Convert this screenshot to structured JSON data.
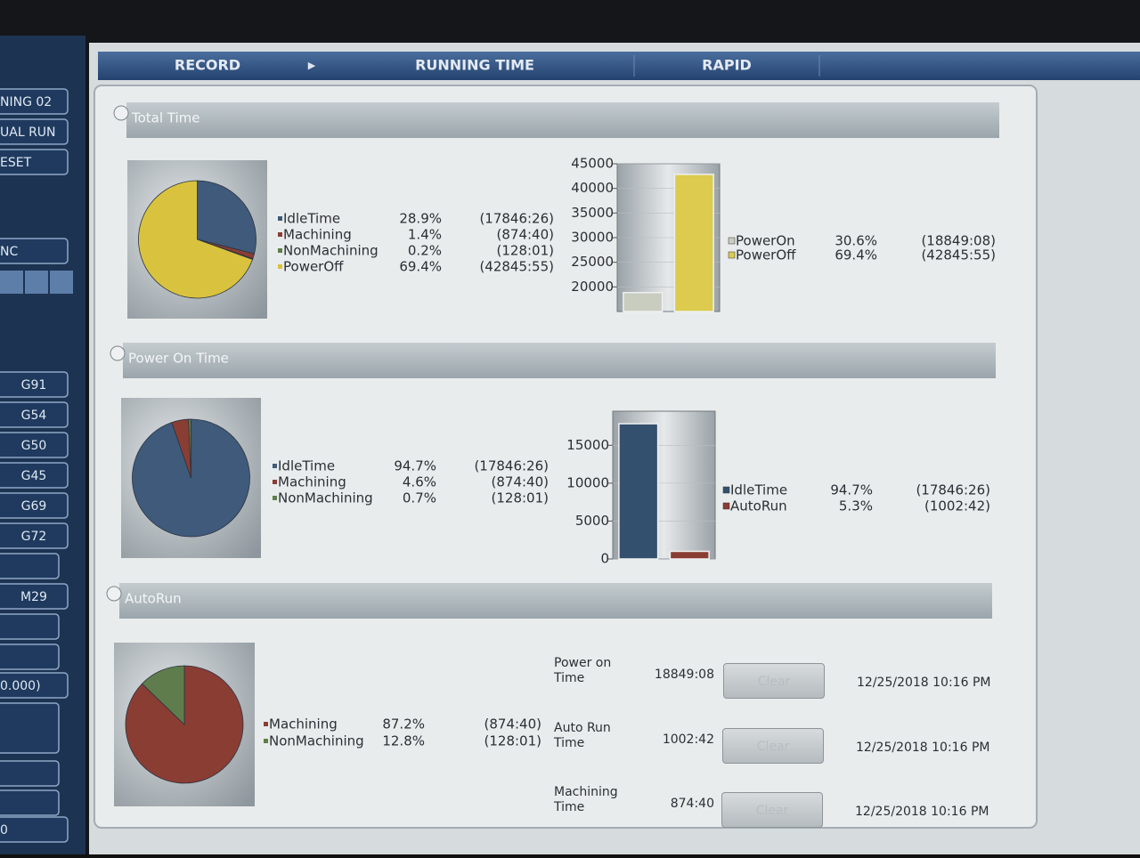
{
  "sidebar": [
    "NING 02",
    "UAL RUN",
    "ESET",
    "NC",
    "G91",
    "G54",
    "G50",
    "G45",
    "G69",
    "G72",
    "M29",
    "0.000)",
    "0"
  ],
  "tabs": [
    "RECORD",
    "RUNNING TIME",
    "RAPID"
  ],
  "sections": [
    {
      "title": "Total Time",
      "pie": {
        "type": "pie",
        "categories": [
          "IdleTime",
          "Machining",
          "NonMachining",
          "PowerOff"
        ],
        "values": [
          28.9,
          1.4,
          0.2,
          69.4
        ],
        "value_labels": [
          "28.9%",
          "1.4%",
          "0.2%",
          "69.4%"
        ],
        "durations": [
          "(17846:26)",
          "(874:40)",
          "(128:01)",
          "(42845:55)"
        ],
        "colors": [
          "#3f5a7a",
          "#8a3d33",
          "#5f7d4c",
          "#d9c23e"
        ]
      },
      "bar": {
        "type": "bar",
        "categories": [
          "PowerOn",
          "PowerOff"
        ],
        "values": [
          18849,
          42846
        ],
        "shares": [
          "30.6%",
          "69.4%"
        ],
        "durations": [
          "(18849:08)",
          "(42845:55)"
        ],
        "colors": [
          "#c9cdbf",
          "#dccb4e"
        ],
        "ylim": [
          15000,
          45000
        ],
        "yticks": [
          20000,
          25000,
          30000,
          35000,
          40000,
          45000
        ]
      }
    },
    {
      "title": "Power On Time",
      "pie": {
        "type": "pie",
        "categories": [
          "IdleTime",
          "Machining",
          "NonMachining"
        ],
        "values": [
          94.7,
          4.6,
          0.7
        ],
        "value_labels": [
          "94.7%",
          "4.6%",
          "0.7%"
        ],
        "durations": [
          "(17846:26)",
          "(874:40)",
          "(128:01)"
        ],
        "colors": [
          "#3f5a7a",
          "#8a3d33",
          "#5f7d4c"
        ]
      },
      "bar": {
        "type": "bar",
        "categories": [
          "IdleTime",
          "AutoRun"
        ],
        "values": [
          17846,
          1003
        ],
        "shares": [
          "94.7%",
          "5.3%"
        ],
        "durations": [
          "(17846:26)",
          "(1002:42)"
        ],
        "colors": [
          "#34506f",
          "#8a3d33"
        ],
        "ylim": [
          0,
          19500
        ],
        "yticks": [
          0,
          5000,
          10000,
          15000
        ]
      }
    },
    {
      "title": "AutoRun",
      "pie": {
        "type": "pie",
        "categories": [
          "Machining",
          "NonMachining"
        ],
        "values": [
          87.2,
          12.8
        ],
        "value_labels": [
          "87.2%",
          "12.8%"
        ],
        "durations": [
          "(874:40)",
          "(128:01)"
        ],
        "colors": [
          "#8a3d33",
          "#5f7d4c"
        ]
      }
    }
  ],
  "counters": [
    {
      "label": "Power on Time",
      "value": "18849:08",
      "button": "Clear",
      "timestamp": "12/25/2018 10:16 PM"
    },
    {
      "label": "Auto Run Time",
      "value": "1002:42",
      "button": "Clear",
      "timestamp": "12/25/2018 10:16 PM"
    },
    {
      "label": "Machining Time",
      "value": "874:40",
      "button": "Clear",
      "timestamp": "12/25/2018 10:16 PM"
    }
  ]
}
